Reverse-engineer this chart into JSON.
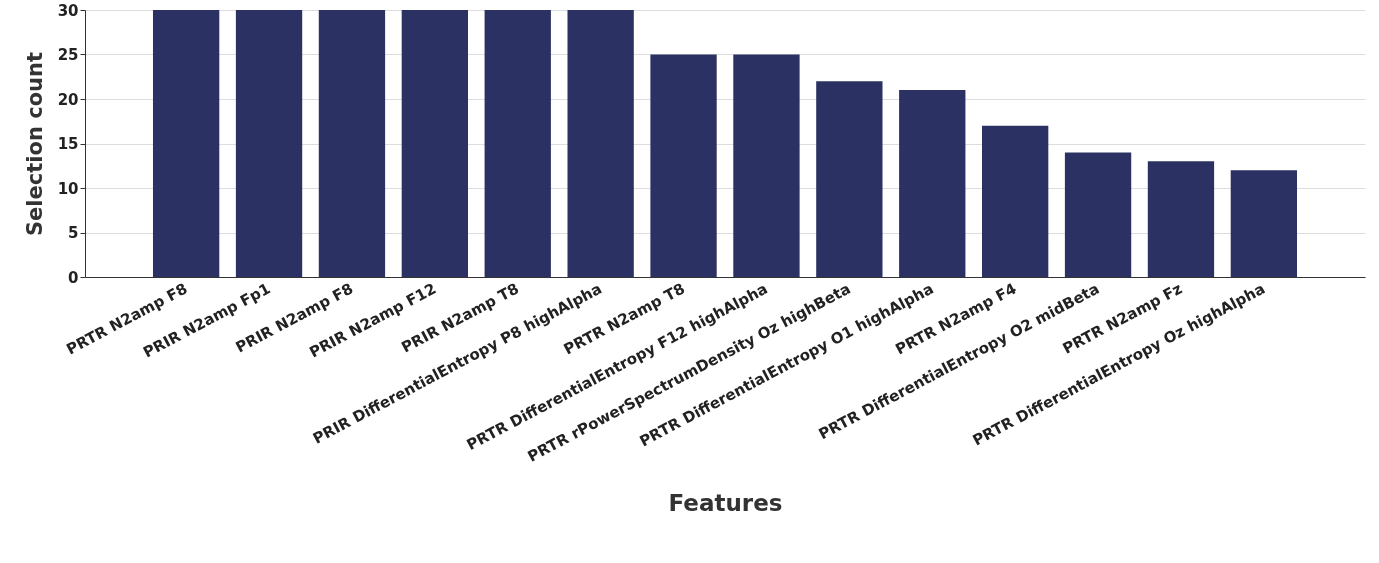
{
  "chart_data": {
    "type": "bar",
    "xlabel": "Features",
    "ylabel": "Selection count",
    "categories": [
      "PRTR N2amp F8",
      "PRIR N2amp Fp1",
      "PRIR N2amp F8",
      "PRIR N2amp F12",
      "PRIR N2amp T8",
      "PRIR DifferentialEntropy P8 highAlpha",
      "PRTR N2amp T8",
      "PRTR DifferentialEntropy F12 highAlpha",
      "PRTR rPowerSpectrumDensity Oz highBeta",
      "PRTR DifferentialEntropy O1 highAlpha",
      "PRTR N2amp F4",
      "PRTR DifferentialEntropy O2 midBeta",
      "PRTR N2amp Fz",
      "PRTR DifferentialEntropy Oz highAlpha"
    ],
    "values": [
      30,
      30,
      30,
      30,
      30,
      30,
      25,
      25,
      22,
      21,
      17,
      14,
      13,
      12
    ],
    "color": "#2b3263",
    "ylim": [
      0,
      30
    ],
    "yticks": [
      0,
      5,
      10,
      15,
      20,
      25,
      30
    ],
    "grid": "y"
  }
}
